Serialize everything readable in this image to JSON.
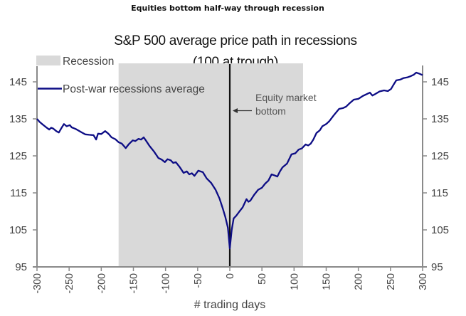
{
  "heading": "Equities bottom half-way through recession",
  "chart_data": {
    "type": "line",
    "title": "S&P 500 average price path in recessions",
    "subtitle": "(100 at trough)",
    "xlabel": "# trading days",
    "ylabel": "",
    "xlim": [
      -300,
      300
    ],
    "ylim": [
      95,
      150
    ],
    "x_ticks": [
      -300,
      -250,
      -200,
      -150,
      -100,
      -50,
      0,
      50,
      100,
      150,
      200,
      250,
      300
    ],
    "x_tick_labels": [
      "-300",
      "-250",
      "-200",
      "-150",
      "-100",
      "-50",
      "0",
      "50",
      "100",
      "150",
      "200",
      "250",
      "300"
    ],
    "y_ticks": [
      95,
      105,
      115,
      125,
      135,
      145
    ],
    "y_tick_labels": [
      "95",
      "105",
      "115",
      "125",
      "135",
      "145"
    ],
    "y_axis_both_sides": true,
    "grid": false,
    "legend": {
      "placement": "top-left",
      "entries": [
        {
          "label": "Recession",
          "type": "shaded-area",
          "color": "#d9d9d9"
        },
        {
          "label": "Post-war recessions average",
          "type": "line",
          "color": "#0d0d85"
        }
      ]
    },
    "shaded_regions": [
      {
        "name": "Recession",
        "x_start": -173,
        "x_end": 114,
        "color": "#d9d9d9"
      }
    ],
    "vertical_lines": [
      {
        "x": 0,
        "color": "#111111"
      }
    ],
    "annotations": [
      {
        "lines": [
          "Equity market",
          "bottom"
        ],
        "arrow_to_x": 0,
        "y": 133
      }
    ],
    "series": [
      {
        "name": "Post-war recessions average",
        "color": "#0d0d85",
        "x": [
          -300,
          -296,
          -292,
          -287,
          -281,
          -278,
          -275,
          -270,
          -266,
          -262,
          -258,
          -254,
          -249,
          -246,
          -243,
          -239,
          -236,
          -231,
          -225,
          -219,
          -212,
          -210,
          -208,
          -205,
          -200,
          -194,
          -189,
          -184,
          -178,
          -173,
          -168,
          -162,
          -157,
          -151,
          -147,
          -142,
          -138,
          -134,
          -130,
          -125,
          -118,
          -111,
          -106,
          -101,
          -97,
          -92,
          -88,
          -84,
          -78,
          -72,
          -67,
          -63,
          -59,
          -55,
          -49,
          -42,
          -36,
          -29,
          -22,
          -16,
          -11,
          -7,
          -3,
          0,
          3,
          6,
          10,
          15,
          20,
          26,
          29,
          32,
          38,
          44,
          50,
          55,
          60,
          65,
          70,
          74,
          78,
          82,
          89,
          96,
          102,
          107,
          112,
          118,
          122,
          126,
          130,
          135,
          140,
          144,
          150,
          155,
          162,
          170,
          176,
          181,
          187,
          193,
          200,
          207,
          212,
          218,
          222,
          226,
          233,
          240,
          246,
          251,
          255,
          259,
          265,
          270,
          276,
          281,
          286,
          290,
          295,
          300
        ],
        "y": [
          135.0,
          134.2,
          133.6,
          132.9,
          132.1,
          132.6,
          132.4,
          131.7,
          131.3,
          132.5,
          133.6,
          133.0,
          133.3,
          132.7,
          132.5,
          132.2,
          131.9,
          131.4,
          130.8,
          130.7,
          130.6,
          130.0,
          129.4,
          131.0,
          130.9,
          131.7,
          131.0,
          130.0,
          129.5,
          128.7,
          128.3,
          127.1,
          128.2,
          129.2,
          129.0,
          129.6,
          129.4,
          130.0,
          129.0,
          127.7,
          126.2,
          124.4,
          124.0,
          123.3,
          124.1,
          123.8,
          123.1,
          123.3,
          122.0,
          120.4,
          120.8,
          120.0,
          120.3,
          119.6,
          121.0,
          120.6,
          118.9,
          117.7,
          115.8,
          113.5,
          110.8,
          108.5,
          105.6,
          100.0,
          105.0,
          108.1,
          108.8,
          110.0,
          111.1,
          113.3,
          112.6,
          112.9,
          114.5,
          115.8,
          116.4,
          117.5,
          118.3,
          120.0,
          119.7,
          119.4,
          120.8,
          121.9,
          122.9,
          125.4,
          125.7,
          126.7,
          127.0,
          128.1,
          127.8,
          128.3,
          129.4,
          131.2,
          131.9,
          133.0,
          133.6,
          134.4,
          136.0,
          137.7,
          137.9,
          138.3,
          139.3,
          140.2,
          140.4,
          141.2,
          141.6,
          142.1,
          141.3,
          141.7,
          142.4,
          142.7,
          142.5,
          143.1,
          144.3,
          145.4,
          145.6,
          146.0,
          146.2,
          146.5,
          146.9,
          147.5,
          147.2,
          146.8
        ]
      }
    ]
  }
}
